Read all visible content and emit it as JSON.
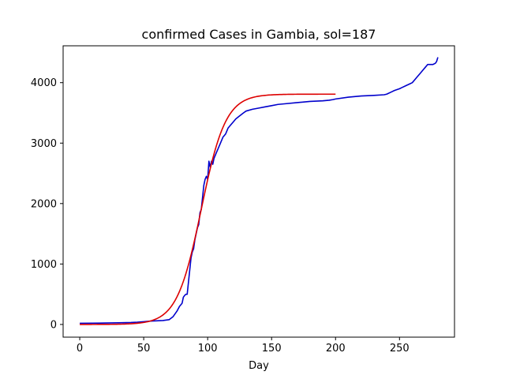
{
  "chart_data": {
    "type": "line",
    "title": "confirmed Cases in Gambia, sol=187",
    "xlabel": "Day",
    "ylabel": "",
    "xlim": [
      -13,
      293
    ],
    "ylim": [
      -210,
      4610
    ],
    "xticks": [
      0,
      50,
      100,
      150,
      200,
      250
    ],
    "yticks": [
      0,
      1000,
      2000,
      3000,
      4000
    ],
    "grid": false,
    "legend": "none",
    "series": [
      {
        "color": "#0000cc",
        "x": [
          0,
          10,
          20,
          30,
          40,
          45,
          50,
          55,
          60,
          65,
          70,
          73,
          76,
          78,
          80,
          81,
          82,
          83,
          84,
          85,
          86,
          87,
          88,
          89,
          90,
          91,
          92,
          93,
          94,
          95,
          96,
          97,
          98,
          99,
          100,
          101,
          102,
          103,
          104,
          105,
          106,
          107,
          108,
          110,
          112,
          114,
          116,
          118,
          120,
          122,
          125,
          128,
          130,
          135,
          140,
          145,
          150,
          155,
          160,
          170,
          180,
          190,
          195,
          198,
          200,
          210,
          220,
          230,
          238,
          240,
          244,
          246,
          250,
          252,
          255,
          258,
          260,
          262,
          264,
          266,
          268,
          270,
          272,
          274,
          276,
          278,
          279,
          280
        ],
        "y": [
          20,
          22,
          24,
          27,
          32,
          37,
          45,
          55,
          60,
          65,
          80,
          130,
          220,
          300,
          350,
          450,
          480,
          500,
          500,
          700,
          900,
          1100,
          1200,
          1250,
          1400,
          1500,
          1600,
          1650,
          1850,
          1900,
          2100,
          2300,
          2400,
          2450,
          2400,
          2700,
          2600,
          2700,
          2650,
          2750,
          2800,
          2850,
          2900,
          3000,
          3100,
          3150,
          3250,
          3300,
          3350,
          3400,
          3450,
          3500,
          3530,
          3560,
          3580,
          3600,
          3620,
          3640,
          3650,
          3670,
          3690,
          3700,
          3710,
          3720,
          3730,
          3760,
          3780,
          3790,
          3800,
          3810,
          3850,
          3870,
          3900,
          3920,
          3950,
          3980,
          4000,
          4050,
          4100,
          4150,
          4200,
          4250,
          4300,
          4300,
          4300,
          4320,
          4350,
          4420
        ]
      },
      {
        "color": "#dd0000",
        "model": "logistic fit",
        "fit_params": {
          "K": 3810,
          "r": 0.105,
          "t0": 95
        },
        "x_range": [
          0,
          200
        ]
      }
    ]
  }
}
